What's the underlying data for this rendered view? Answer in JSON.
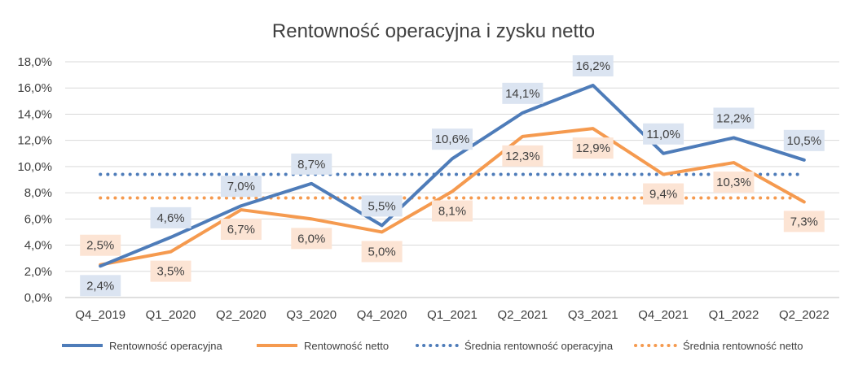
{
  "chart_data": {
    "type": "line",
    "title": "Rentowność operacyjna i zysku netto",
    "categories": [
      "Q4_2019",
      "Q1_2020",
      "Q2_2020",
      "Q3_2020",
      "Q4_2020",
      "Q1_2021",
      "Q2_2021",
      "Q3_2021",
      "Q4_2021",
      "Q1_2022",
      "Q2_2022"
    ],
    "ylim": [
      0,
      18
    ],
    "y_ticks": [
      "0,0%",
      "2,0%",
      "4,0%",
      "6,0%",
      "8,0%",
      "10,0%",
      "12,0%",
      "14,0%",
      "16,0%",
      "18,0%"
    ],
    "grid": true,
    "legend_position": "bottom",
    "series": [
      {
        "name": "Rentowność operacyjna",
        "color": "#4e7cb9",
        "style": "solid",
        "values": [
          2.4,
          4.6,
          7.0,
          8.7,
          5.5,
          10.6,
          14.1,
          16.2,
          11.0,
          12.2,
          10.5
        ],
        "labels": [
          "2,4%",
          "4,6%",
          "7,0%",
          "8,7%",
          "5,5%",
          "10,6%",
          "14,1%",
          "16,2%",
          "11,0%",
          "12,2%",
          "10,5%"
        ],
        "label_bg": "#dbe4f1"
      },
      {
        "name": "Rentowność netto",
        "color": "#f59a4f",
        "style": "solid",
        "values": [
          2.5,
          3.5,
          6.7,
          6.0,
          5.0,
          8.1,
          12.3,
          12.9,
          9.4,
          10.3,
          7.3
        ],
        "labels": [
          "2,5%",
          "3,5%",
          "6,7%",
          "6,0%",
          "5,0%",
          "8,1%",
          "12,3%",
          "12,9%",
          "9,4%",
          "10,3%",
          "7,3%"
        ],
        "label_bg": "#fce4d4"
      },
      {
        "name": "Średnia rentowność operacyjna",
        "color": "#4e7cb9",
        "style": "dotted",
        "value": 9.4
      },
      {
        "name": "Średnia rentowność netto",
        "color": "#f59a4f",
        "style": "dotted",
        "value": 7.6
      }
    ]
  }
}
